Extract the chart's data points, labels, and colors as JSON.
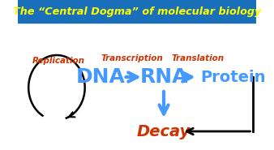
{
  "title": "The “Central Dogma” of molecular biology",
  "title_color": "#FFFF00",
  "title_bg": "#1a6fba",
  "bg_color": "#ffffff",
  "label_color_orange": "#cc3300",
  "label_color_blue": "#4499ff",
  "black_color": "#000000",
  "replication_label": "Replication",
  "transcription_label": "Transcription",
  "translation_label": "Translation",
  "dna_label": "DNA",
  "rna_label": "RNA",
  "protein_label": "Protein",
  "decay_label": "Decay"
}
